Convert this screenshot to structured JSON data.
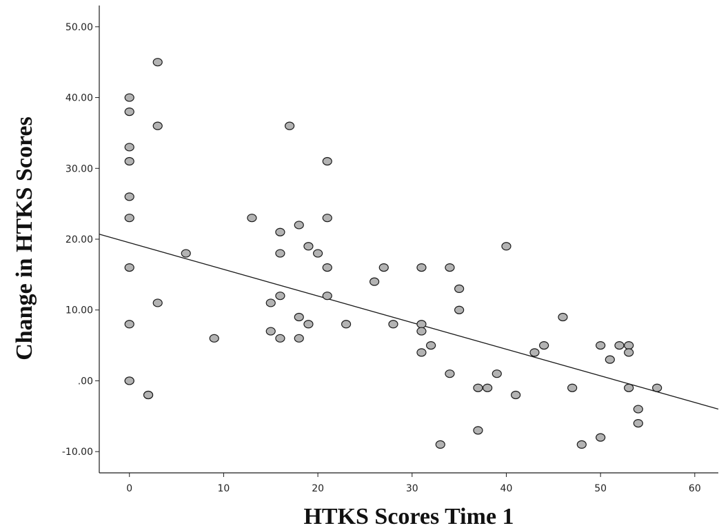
{
  "chart_data": {
    "type": "scatter",
    "title": "",
    "xlabel": "HTKS Scores Time 1",
    "ylabel": "Change in HTKS Scores",
    "xlim": [
      -3.2,
      62.5
    ],
    "ylim": [
      -13.0,
      53.0
    ],
    "x_ticks": [
      0,
      10,
      20,
      30,
      40,
      50,
      60
    ],
    "x_tick_labels": [
      "0",
      "10",
      "20",
      "30",
      "40",
      "50",
      "60"
    ],
    "y_ticks": [
      -10,
      0,
      10,
      20,
      30,
      40,
      50
    ],
    "y_tick_labels": [
      "-10.00",
      ".00",
      "10.00",
      "20.00",
      "30.00",
      "40.00",
      "50.00"
    ],
    "grid": false,
    "marker_fill": "#b3b3b3",
    "marker_stroke": "#1a1a1a",
    "line_color": "#1a1a1a",
    "fit_line": {
      "x": [
        -3.2,
        62.5
      ],
      "y": [
        20.7,
        -4.0
      ]
    },
    "series": [
      {
        "points": [
          [
            0,
            40
          ],
          [
            0,
            38
          ],
          [
            0,
            33
          ],
          [
            0,
            31
          ],
          [
            0,
            26
          ],
          [
            0,
            23
          ],
          [
            0,
            16
          ],
          [
            0,
            8
          ],
          [
            0,
            0
          ],
          [
            0,
            0
          ],
          [
            2,
            -2
          ],
          [
            2,
            -2
          ],
          [
            3,
            45
          ],
          [
            3,
            36
          ],
          [
            3,
            11
          ],
          [
            6,
            18
          ],
          [
            9,
            6
          ],
          [
            13,
            23
          ],
          [
            15,
            11
          ],
          [
            15,
            7
          ],
          [
            16,
            21
          ],
          [
            16,
            18
          ],
          [
            16,
            12
          ],
          [
            16,
            6
          ],
          [
            17,
            36
          ],
          [
            18,
            22
          ],
          [
            18,
            9
          ],
          [
            18,
            6
          ],
          [
            19,
            19
          ],
          [
            19,
            8
          ],
          [
            20,
            18
          ],
          [
            21,
            31
          ],
          [
            21,
            23
          ],
          [
            21,
            16
          ],
          [
            21,
            12
          ],
          [
            23,
            8
          ],
          [
            26,
            14
          ],
          [
            27,
            16
          ],
          [
            28,
            8
          ],
          [
            31,
            16
          ],
          [
            31,
            8
          ],
          [
            31,
            7
          ],
          [
            31,
            4
          ],
          [
            32,
            5
          ],
          [
            33,
            -9
          ],
          [
            34,
            16
          ],
          [
            34,
            1
          ],
          [
            35,
            13
          ],
          [
            35,
            10
          ],
          [
            37,
            -1
          ],
          [
            37,
            -7
          ],
          [
            38,
            -1
          ],
          [
            39,
            1
          ],
          [
            40,
            19
          ],
          [
            41,
            -2
          ],
          [
            43,
            4
          ],
          [
            44,
            5
          ],
          [
            46,
            9
          ],
          [
            47,
            -1
          ],
          [
            48,
            -9
          ],
          [
            50,
            5
          ],
          [
            50,
            -8
          ],
          [
            51,
            3
          ],
          [
            52,
            5
          ],
          [
            53,
            5
          ],
          [
            53,
            4
          ],
          [
            53,
            -1
          ],
          [
            54,
            -4
          ],
          [
            54,
            -6
          ],
          [
            56,
            -1
          ]
        ]
      }
    ]
  }
}
